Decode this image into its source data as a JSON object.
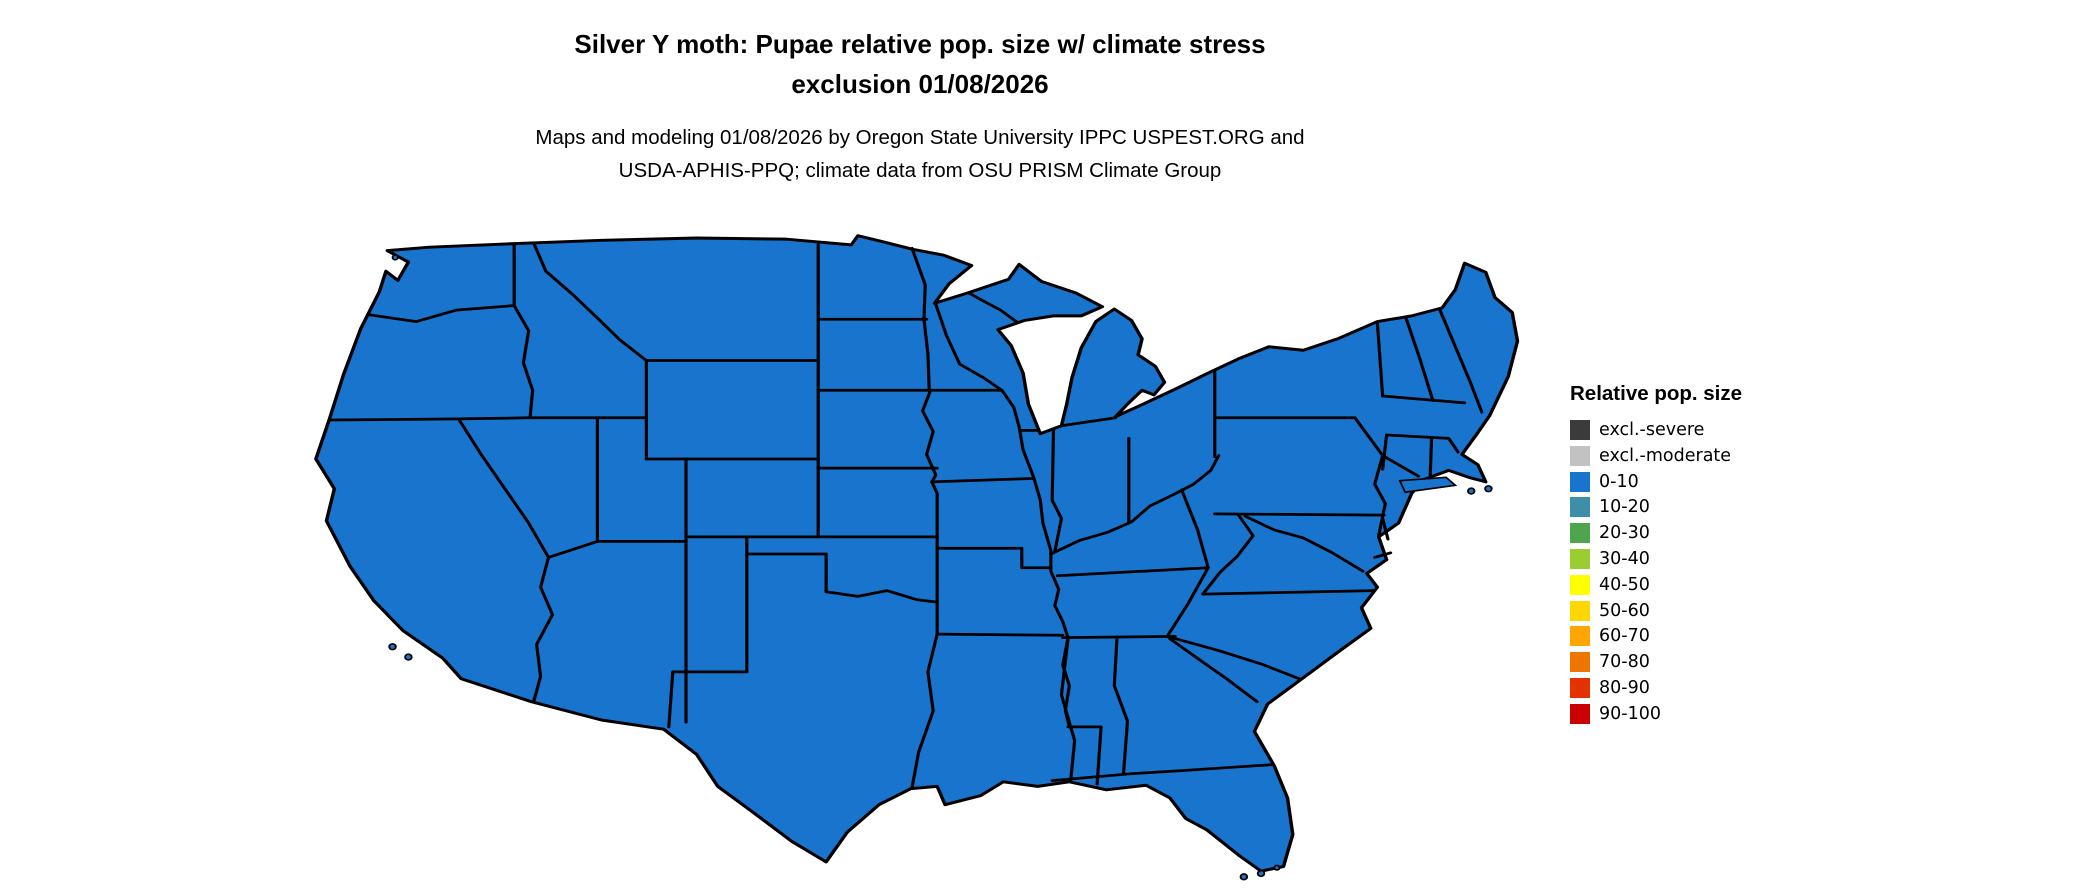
{
  "title": {
    "line1": "Silver Y moth: Pupae relative pop. size w/ climate stress",
    "line2": "exclusion 01/08/2026"
  },
  "subtitle": {
    "line1": "Maps and modeling 01/08/2026 by Oregon State University IPPC USPEST.ORG and",
    "line2": "USDA-APHIS-PPQ; climate data from OSU PRISM Climate Group"
  },
  "map": {
    "region": "Contiguous United States",
    "land_fill": "#1874CD",
    "border_color": "#000000",
    "depicted_value_class": "0-10"
  },
  "legend": {
    "title": "Relative pop. size",
    "items": [
      {
        "label": "excl.-severe",
        "color": "#3B3B3B"
      },
      {
        "label": "excl.-moderate",
        "color": "#C2C2C2"
      },
      {
        "label": "0-10",
        "color": "#1874CD"
      },
      {
        "label": "10-20",
        "color": "#3D8FA8"
      },
      {
        "label": "20-30",
        "color": "#4DA64D"
      },
      {
        "label": "30-40",
        "color": "#9ACD32"
      },
      {
        "label": "40-50",
        "color": "#FFFF00"
      },
      {
        "label": "50-60",
        "color": "#FFD700"
      },
      {
        "label": "60-70",
        "color": "#FFA500"
      },
      {
        "label": "70-80",
        "color": "#EE7600"
      },
      {
        "label": "80-90",
        "color": "#E53000"
      },
      {
        "label": "90-100",
        "color": "#CD0000"
      }
    ]
  }
}
